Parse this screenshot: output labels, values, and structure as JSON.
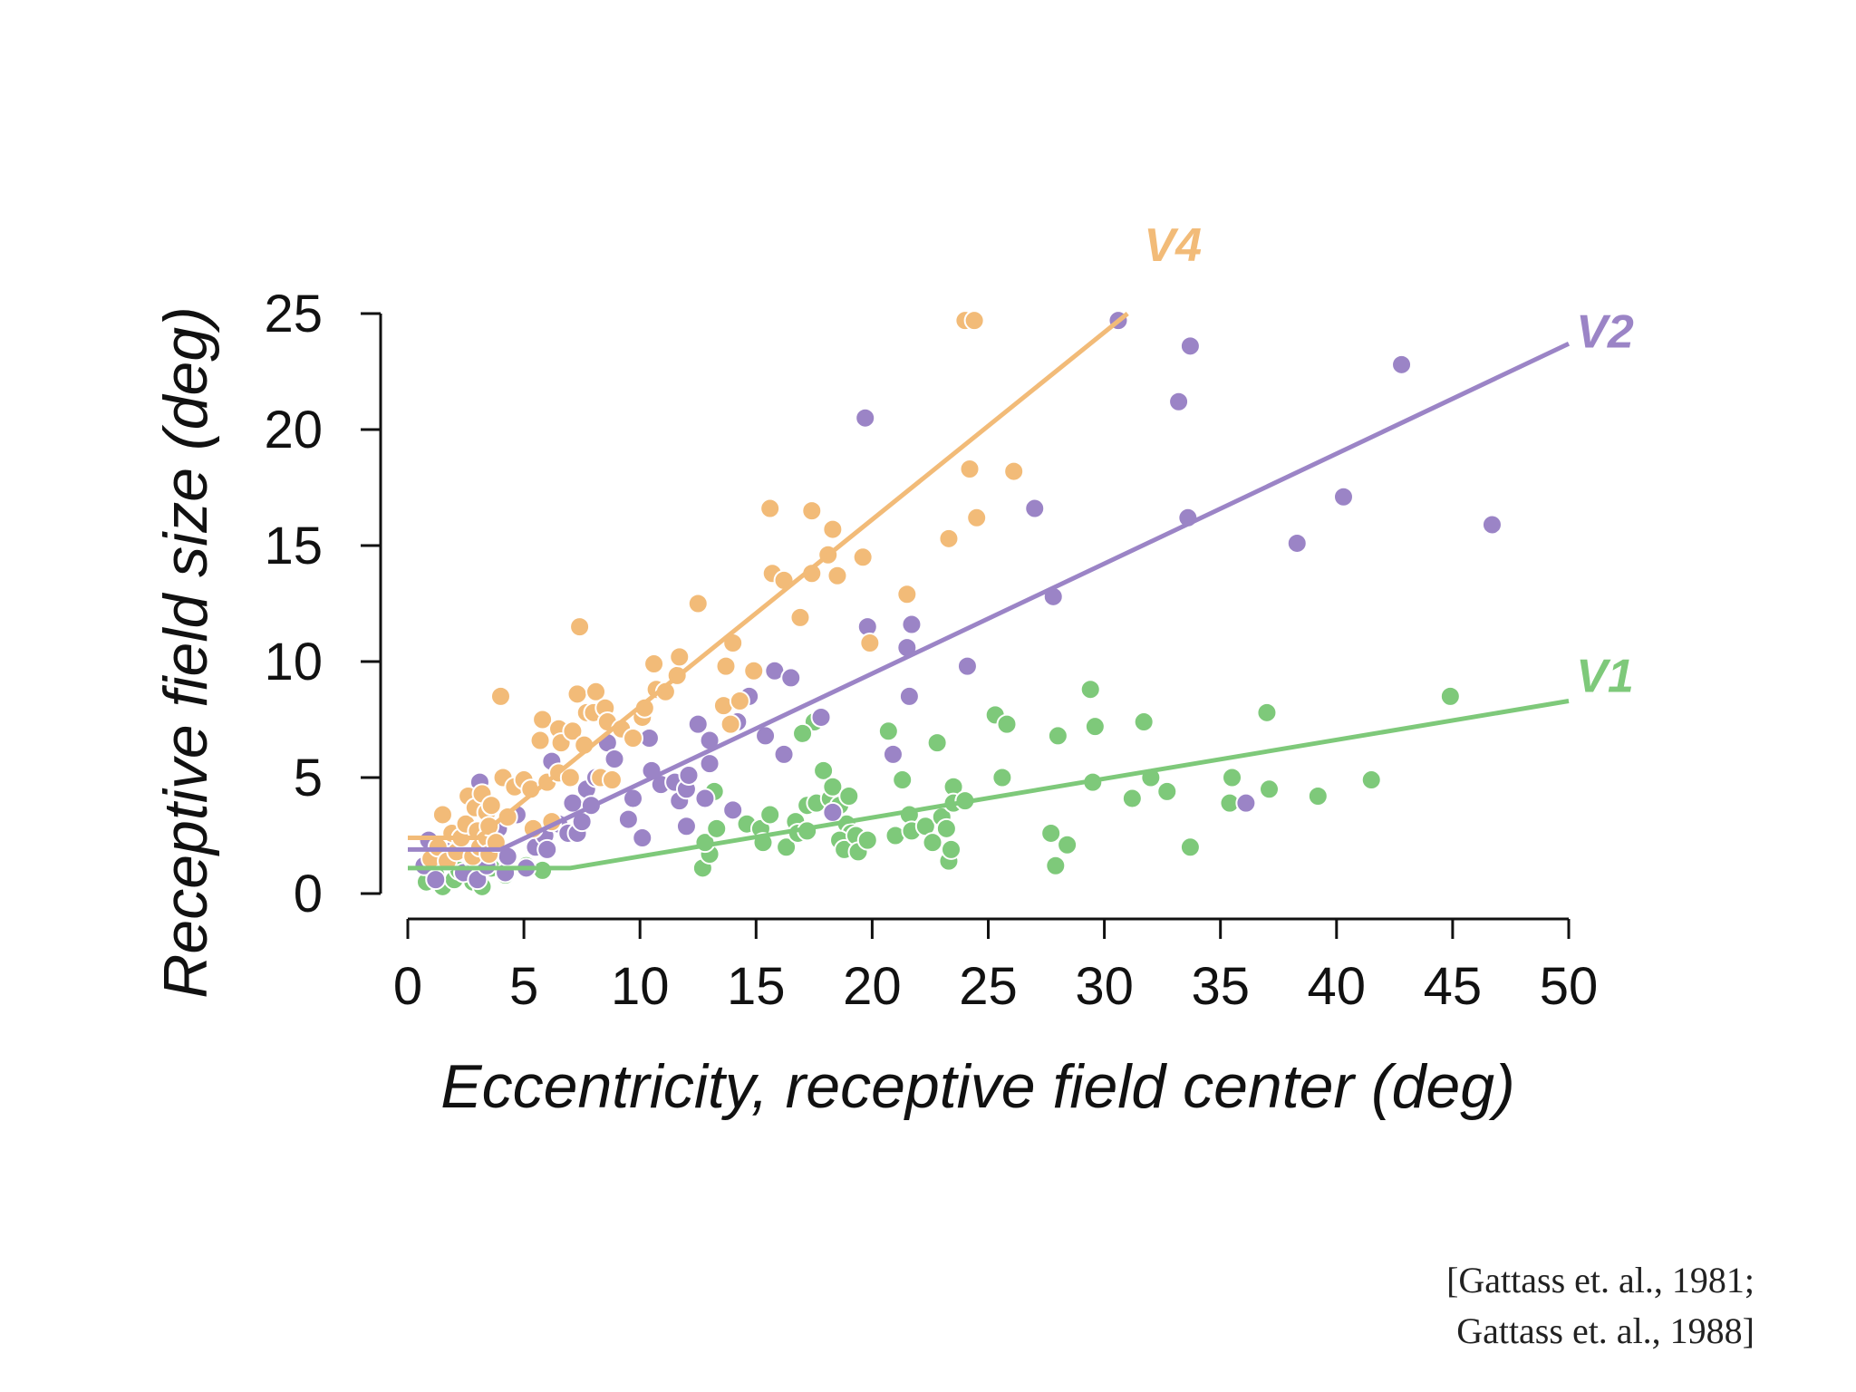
{
  "chart_data": {
    "type": "scatter",
    "xlabel": "Eccentricity, receptive field center (deg)",
    "ylabel": "Receptive field size (deg)",
    "xlim": [
      0,
      50
    ],
    "ylim": [
      0,
      25
    ],
    "x_ticks": [
      "0",
      "5",
      "10",
      "15",
      "20",
      "25",
      "30",
      "35",
      "40",
      "45",
      "50"
    ],
    "y_ticks": [
      "0",
      "5",
      "10",
      "15",
      "20",
      "25"
    ],
    "grid": false,
    "series": [
      {
        "name": "V1",
        "color": "#7ec97a",
        "fit_line": [
          [
            0,
            1.1
          ],
          [
            7,
            1.1
          ],
          [
            50,
            8.3
          ]
        ],
        "points": [
          [
            0.8,
            0.5
          ],
          [
            1.2,
            0.8
          ],
          [
            1.5,
            0.3
          ],
          [
            2.0,
            0.6
          ],
          [
            2.2,
            1.0
          ],
          [
            2.8,
            0.5
          ],
          [
            3.2,
            0.3
          ],
          [
            3.6,
            1.1
          ],
          [
            4.2,
            0.8
          ],
          [
            5.1,
            1.2
          ],
          [
            5.8,
            1.0
          ],
          [
            12.7,
            1.1
          ],
          [
            13.0,
            1.7
          ],
          [
            12.8,
            2.2
          ],
          [
            13.2,
            4.4
          ],
          [
            13.3,
            2.8
          ],
          [
            14.6,
            3.0
          ],
          [
            15.2,
            2.8
          ],
          [
            15.3,
            2.2
          ],
          [
            15.6,
            3.4
          ],
          [
            16.3,
            2.0
          ],
          [
            16.7,
            3.1
          ],
          [
            16.8,
            2.6
          ],
          [
            17.2,
            2.7
          ],
          [
            17.2,
            3.8
          ],
          [
            17.5,
            7.4
          ],
          [
            17.0,
            6.9
          ],
          [
            17.6,
            3.9
          ],
          [
            17.9,
            5.3
          ],
          [
            18.2,
            4.1
          ],
          [
            18.3,
            4.6
          ],
          [
            18.6,
            3.8
          ],
          [
            18.9,
            3.0
          ],
          [
            19.0,
            4.2
          ],
          [
            19.1,
            2.6
          ],
          [
            18.6,
            2.3
          ],
          [
            18.8,
            1.9
          ],
          [
            19.3,
            2.5
          ],
          [
            19.4,
            1.8
          ],
          [
            19.8,
            2.3
          ],
          [
            20.7,
            7.0
          ],
          [
            21.0,
            2.5
          ],
          [
            21.3,
            4.9
          ],
          [
            21.6,
            3.4
          ],
          [
            21.7,
            2.7
          ],
          [
            22.3,
            2.9
          ],
          [
            22.6,
            2.2
          ],
          [
            22.8,
            6.5
          ],
          [
            23.0,
            3.3
          ],
          [
            23.2,
            2.8
          ],
          [
            23.3,
            1.4
          ],
          [
            23.4,
            1.9
          ],
          [
            23.5,
            4.6
          ],
          [
            23.5,
            3.9
          ],
          [
            24.0,
            4.0
          ],
          [
            25.3,
            7.7
          ],
          [
            25.6,
            5.0
          ],
          [
            25.8,
            7.3
          ],
          [
            27.7,
            2.6
          ],
          [
            27.9,
            1.2
          ],
          [
            28.0,
            6.8
          ],
          [
            28.4,
            2.1
          ],
          [
            29.4,
            8.8
          ],
          [
            29.5,
            4.8
          ],
          [
            29.6,
            7.2
          ],
          [
            31.2,
            4.1
          ],
          [
            31.7,
            7.4
          ],
          [
            32.0,
            5.0
          ],
          [
            32.7,
            4.4
          ],
          [
            33.7,
            2.0
          ],
          [
            35.4,
            3.9
          ],
          [
            35.5,
            5.0
          ],
          [
            37.0,
            7.8
          ],
          [
            37.1,
            4.5
          ],
          [
            39.2,
            4.2
          ],
          [
            41.5,
            4.9
          ],
          [
            44.9,
            8.5
          ]
        ]
      },
      {
        "name": "V2",
        "color": "#9b84c6",
        "fit_line": [
          [
            0,
            1.9
          ],
          [
            4,
            1.9
          ],
          [
            50,
            23.7
          ]
        ],
        "points": [
          [
            0.7,
            1.2
          ],
          [
            0.9,
            2.3
          ],
          [
            1.2,
            0.6
          ],
          [
            1.5,
            1.8
          ],
          [
            2.0,
            2.2
          ],
          [
            2.4,
            0.9
          ],
          [
            2.8,
            1.5
          ],
          [
            3.0,
            0.6
          ],
          [
            3.1,
            4.8
          ],
          [
            3.4,
            1.2
          ],
          [
            3.6,
            2.0
          ],
          [
            3.9,
            2.8
          ],
          [
            4.2,
            0.9
          ],
          [
            4.3,
            1.6
          ],
          [
            4.7,
            3.4
          ],
          [
            5.1,
            1.1
          ],
          [
            5.5,
            2.0
          ],
          [
            5.9,
            2.5
          ],
          [
            6.0,
            1.9
          ],
          [
            6.2,
            5.7
          ],
          [
            6.5,
            3.0
          ],
          [
            6.9,
            2.6
          ],
          [
            7.1,
            3.9
          ],
          [
            7.3,
            2.6
          ],
          [
            7.5,
            3.1
          ],
          [
            7.7,
            4.5
          ],
          [
            7.9,
            3.8
          ],
          [
            8.1,
            5.0
          ],
          [
            8.6,
            6.5
          ],
          [
            8.9,
            5.8
          ],
          [
            9.5,
            3.2
          ],
          [
            9.7,
            4.1
          ],
          [
            10.1,
            2.4
          ],
          [
            10.4,
            6.7
          ],
          [
            10.5,
            5.3
          ],
          [
            10.9,
            4.7
          ],
          [
            11.5,
            4.8
          ],
          [
            11.7,
            4.0
          ],
          [
            12.0,
            4.5
          ],
          [
            12.1,
            5.1
          ],
          [
            12.0,
            2.9
          ],
          [
            12.5,
            7.3
          ],
          [
            12.8,
            4.1
          ],
          [
            13.0,
            6.6
          ],
          [
            13.0,
            5.6
          ],
          [
            14.0,
            3.6
          ],
          [
            14.2,
            7.4
          ],
          [
            14.7,
            8.5
          ],
          [
            15.4,
            6.8
          ],
          [
            15.8,
            9.6
          ],
          [
            16.2,
            6.0
          ],
          [
            16.5,
            9.3
          ],
          [
            17.8,
            7.6
          ],
          [
            18.3,
            3.5
          ],
          [
            19.7,
            20.5
          ],
          [
            19.8,
            11.5
          ],
          [
            21.5,
            10.6
          ],
          [
            21.6,
            8.5
          ],
          [
            21.7,
            11.6
          ],
          [
            20.9,
            6.0
          ],
          [
            24.1,
            9.8
          ],
          [
            27.0,
            16.6
          ],
          [
            27.8,
            12.8
          ],
          [
            30.6,
            24.7
          ],
          [
            33.2,
            21.2
          ],
          [
            33.6,
            16.2
          ],
          [
            33.7,
            23.6
          ],
          [
            36.1,
            3.9
          ],
          [
            38.3,
            15.1
          ],
          [
            40.3,
            17.1
          ],
          [
            42.8,
            22.8
          ],
          [
            46.7,
            15.9
          ]
        ]
      },
      {
        "name": "V4",
        "color": "#f2bb78",
        "fit_line": [
          [
            0,
            2.4
          ],
          [
            3,
            2.4
          ],
          [
            31,
            25
          ]
        ],
        "points": [
          [
            1.0,
            1.5
          ],
          [
            1.3,
            2.0
          ],
          [
            1.5,
            3.4
          ],
          [
            1.7,
            1.4
          ],
          [
            1.9,
            2.6
          ],
          [
            2.1,
            1.8
          ],
          [
            2.3,
            2.4
          ],
          [
            2.5,
            3.0
          ],
          [
            2.6,
            4.2
          ],
          [
            2.8,
            1.6
          ],
          [
            2.9,
            3.7
          ],
          [
            3.0,
            2.7
          ],
          [
            3.1,
            2.0
          ],
          [
            3.2,
            4.3
          ],
          [
            3.4,
            3.5
          ],
          [
            3.4,
            2.4
          ],
          [
            3.5,
            1.7
          ],
          [
            3.5,
            2.9
          ],
          [
            3.6,
            3.8
          ],
          [
            3.8,
            2.2
          ],
          [
            4.0,
            8.5
          ],
          [
            4.1,
            5.0
          ],
          [
            4.3,
            3.3
          ],
          [
            4.6,
            4.6
          ],
          [
            5.0,
            4.9
          ],
          [
            5.3,
            4.5
          ],
          [
            5.4,
            2.8
          ],
          [
            5.7,
            6.6
          ],
          [
            5.8,
            7.5
          ],
          [
            6.0,
            4.8
          ],
          [
            6.2,
            3.1
          ],
          [
            6.5,
            5.2
          ],
          [
            6.5,
            7.1
          ],
          [
            6.6,
            6.5
          ],
          [
            7.0,
            5.0
          ],
          [
            7.1,
            7.0
          ],
          [
            7.3,
            8.6
          ],
          [
            7.4,
            11.5
          ],
          [
            7.6,
            6.4
          ],
          [
            7.7,
            7.8
          ],
          [
            8.0,
            7.8
          ],
          [
            8.1,
            8.7
          ],
          [
            8.3,
            5.0
          ],
          [
            8.5,
            8.0
          ],
          [
            8.6,
            7.4
          ],
          [
            8.8,
            4.9
          ],
          [
            9.2,
            7.1
          ],
          [
            9.7,
            6.7
          ],
          [
            10.1,
            7.6
          ],
          [
            10.2,
            8.0
          ],
          [
            10.6,
            9.9
          ],
          [
            10.7,
            8.8
          ],
          [
            11.1,
            8.7
          ],
          [
            11.6,
            9.4
          ],
          [
            11.7,
            10.2
          ],
          [
            12.5,
            12.5
          ],
          [
            13.6,
            8.1
          ],
          [
            13.7,
            9.8
          ],
          [
            13.9,
            7.3
          ],
          [
            14.0,
            10.8
          ],
          [
            14.3,
            8.3
          ],
          [
            14.9,
            9.6
          ],
          [
            15.6,
            16.6
          ],
          [
            15.7,
            13.8
          ],
          [
            16.2,
            13.5
          ],
          [
            16.9,
            11.9
          ],
          [
            17.4,
            16.5
          ],
          [
            17.4,
            13.8
          ],
          [
            18.1,
            14.6
          ],
          [
            18.3,
            15.7
          ],
          [
            18.5,
            13.7
          ],
          [
            19.6,
            14.5
          ],
          [
            19.9,
            10.8
          ],
          [
            21.5,
            12.9
          ],
          [
            23.3,
            15.3
          ],
          [
            24.0,
            24.7
          ],
          [
            24.2,
            18.3
          ],
          [
            24.4,
            24.7
          ],
          [
            24.5,
            16.2
          ],
          [
            26.1,
            18.2
          ]
        ]
      }
    ],
    "citation": {
      "line1": "[Gattass et. al., 1981;",
      "line2": "Gattass et. al., 1988]"
    }
  }
}
